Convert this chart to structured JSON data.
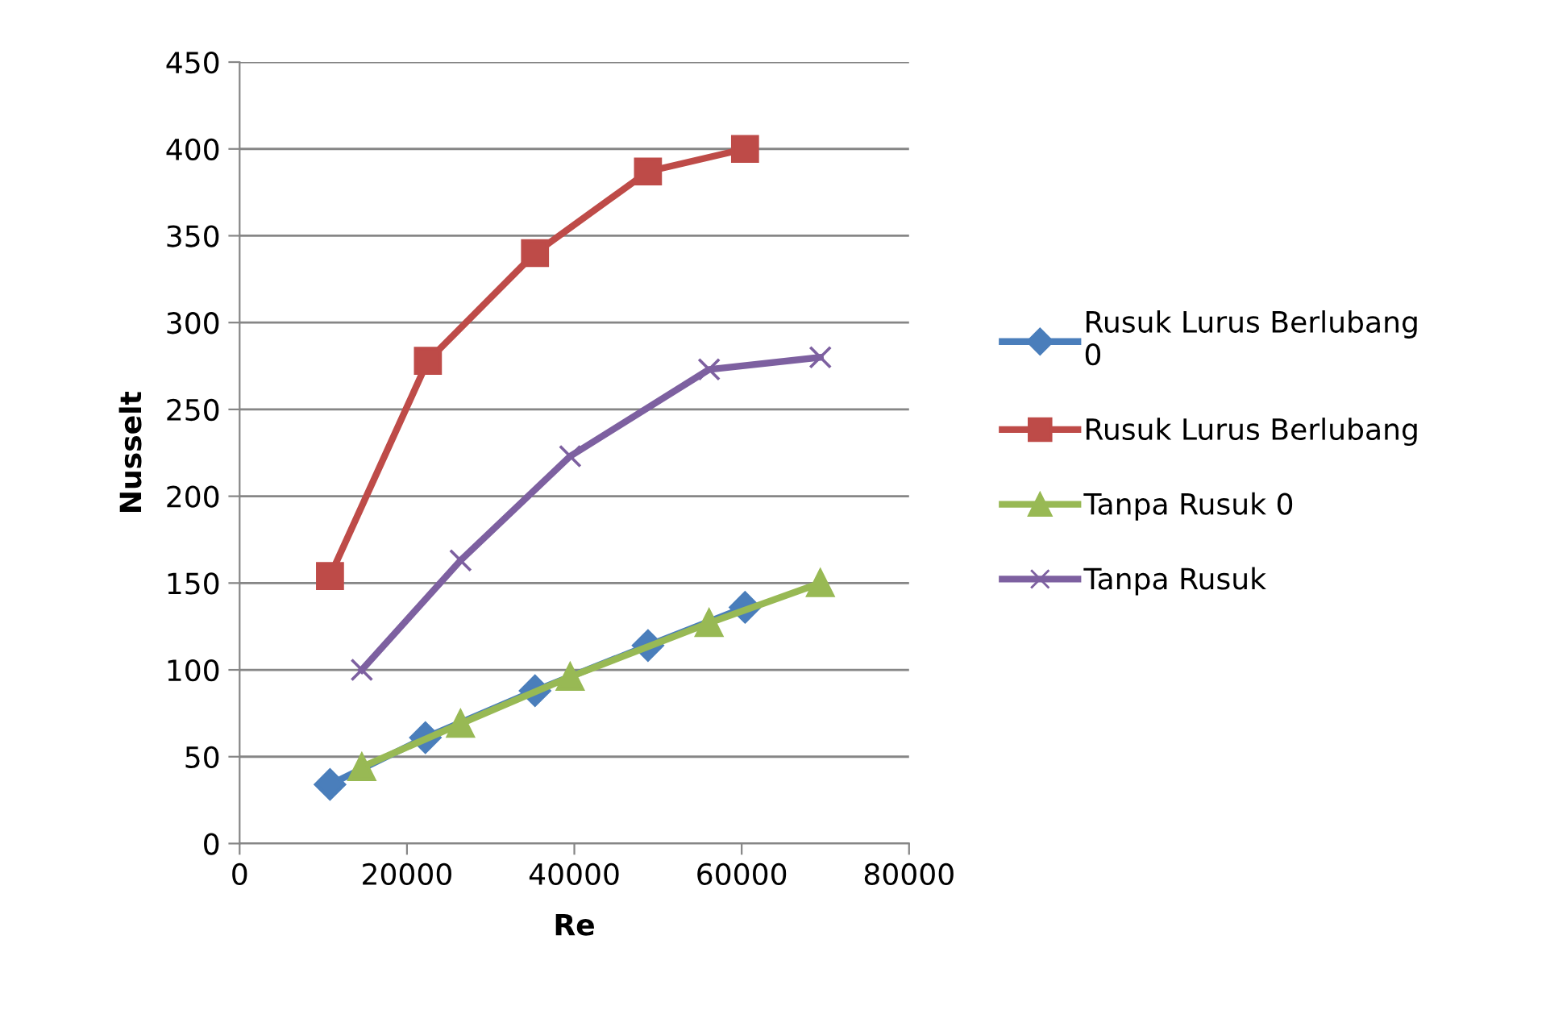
{
  "chart_data": {
    "type": "line",
    "xlabel": "Re",
    "ylabel": "Nusselt",
    "xlim": [
      0,
      80000
    ],
    "xticks": [
      0,
      20000,
      40000,
      60000,
      80000
    ],
    "ylim": [
      0,
      450
    ],
    "yticks": [
      0,
      50,
      100,
      150,
      200,
      250,
      300,
      350,
      400,
      450
    ],
    "grid": "y",
    "legend": "right",
    "line_style": "solid",
    "series": [
      {
        "name": "Rusuk Lurus Berlubang\n0",
        "color": "#4a7ebb",
        "marker": "diamond",
        "x": [
          10800,
          22200,
          35300,
          48800,
          60400
        ],
        "values": [
          34,
          61,
          88,
          114,
          136
        ]
      },
      {
        "name": "Rusuk Lurus Berlubang",
        "color": "#be4b48",
        "marker": "square",
        "x": [
          10800,
          22500,
          35300,
          48800,
          60400
        ],
        "values": [
          154,
          278,
          340,
          387,
          400
        ]
      },
      {
        "name": "Tanpa Rusuk 0",
        "color": "#98b954",
        "marker": "triangle",
        "x": [
          14600,
          26400,
          39500,
          56100,
          69400
        ],
        "values": [
          44,
          69,
          96,
          127,
          150
        ]
      },
      {
        "name": "Tanpa Rusuk",
        "color": "#7d60a0",
        "marker": "cross",
        "x": [
          14600,
          26400,
          39500,
          56100,
          69400
        ],
        "values": [
          100,
          163,
          223,
          273,
          280
        ]
      }
    ]
  }
}
